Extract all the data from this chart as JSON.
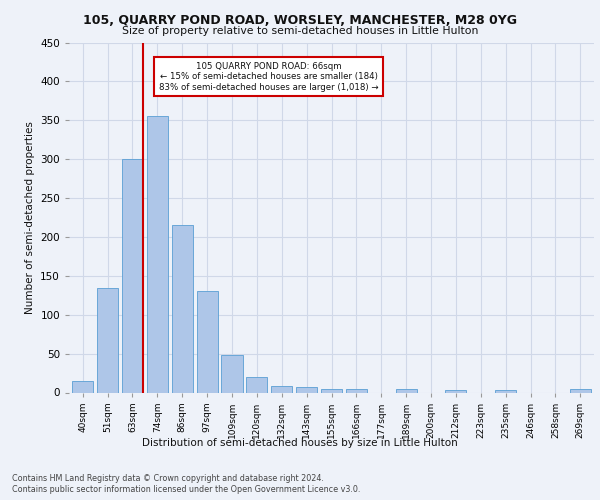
{
  "title1": "105, QUARRY POND ROAD, WORSLEY, MANCHESTER, M28 0YG",
  "title2": "Size of property relative to semi-detached houses in Little Hulton",
  "xlabel": "Distribution of semi-detached houses by size in Little Hulton",
  "ylabel": "Number of semi-detached properties",
  "footer1": "Contains HM Land Registry data © Crown copyright and database right 2024.",
  "footer2": "Contains public sector information licensed under the Open Government Licence v3.0.",
  "categories": [
    "40sqm",
    "51sqm",
    "63sqm",
    "74sqm",
    "86sqm",
    "97sqm",
    "109sqm",
    "120sqm",
    "132sqm",
    "143sqm",
    "155sqm",
    "166sqm",
    "177sqm",
    "189sqm",
    "200sqm",
    "212sqm",
    "223sqm",
    "235sqm",
    "246sqm",
    "258sqm",
    "269sqm"
  ],
  "values": [
    15,
    135,
    300,
    355,
    215,
    130,
    48,
    20,
    9,
    7,
    5,
    5,
    0,
    4,
    0,
    3,
    0,
    3,
    0,
    0,
    4
  ],
  "bar_color": "#aec6e8",
  "bar_edgecolor": "#5a9fd4",
  "red_line_x": 2.42,
  "annotation_text": "105 QUARRY POND ROAD: 66sqm\n← 15% of semi-detached houses are smaller (184)\n83% of semi-detached houses are larger (1,018) →",
  "annotation_box_color": "#ffffff",
  "annotation_box_edgecolor": "#cc0000",
  "red_line_color": "#cc0000",
  "grid_color": "#d0d8e8",
  "ylim": [
    0,
    450
  ],
  "background_color": "#eef2f9"
}
